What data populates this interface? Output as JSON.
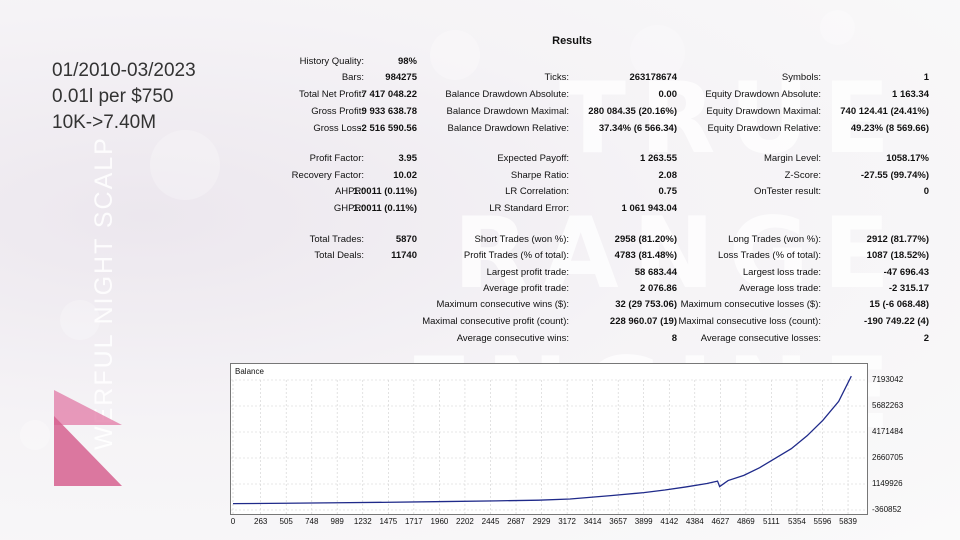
{
  "header_lines": [
    "01/2010-03/2023",
    "0.01l per $750",
    "10K->7.40M"
  ],
  "vertical_text": "WERFUL NIGHT SCALP",
  "watermark_lines": [
    "TRUE",
    "RANGE",
    "ENGINE"
  ],
  "results": {
    "title": "Results",
    "rows": [
      {
        "top": 56,
        "cells": [
          [
            "History Quality:",
            "98%"
          ]
        ]
      },
      {
        "top": 72,
        "cells": [
          [
            "Bars:",
            "984275"
          ],
          [
            "Ticks:",
            "263178674"
          ],
          [
            "Symbols:",
            "1"
          ]
        ]
      },
      {
        "top": 89,
        "cells": [
          [
            "Total Net Profit:",
            "7 417 048.22"
          ],
          [
            "Balance Drawdown Absolute:",
            "0.00"
          ],
          [
            "Equity Drawdown Absolute:",
            "1 163.34"
          ]
        ]
      },
      {
        "top": 106,
        "cells": [
          [
            "Gross Profit:",
            "9 933 638.78"
          ],
          [
            "Balance Drawdown Maximal:",
            "280 084.35 (20.16%)"
          ],
          [
            "Equity Drawdown Maximal:",
            "740 124.41 (24.41%)"
          ]
        ]
      },
      {
        "top": 123,
        "cells": [
          [
            "Gross Loss:",
            "-2 516 590.56"
          ],
          [
            "Balance Drawdown Relative:",
            "37.34% (6 566.34)"
          ],
          [
            "Equity Drawdown Relative:",
            "49.23% (8 569.66)"
          ]
        ]
      },
      {
        "top": 153,
        "cells": [
          [
            "Profit Factor:",
            "3.95"
          ],
          [
            "Expected Payoff:",
            "1 263.55"
          ],
          [
            "Margin Level:",
            "1058.17%"
          ]
        ]
      },
      {
        "top": 170,
        "cells": [
          [
            "Recovery Factor:",
            "10.02"
          ],
          [
            "Sharpe Ratio:",
            "2.08"
          ],
          [
            "Z-Score:",
            "-27.55 (99.74%)"
          ]
        ]
      },
      {
        "top": 186,
        "cells": [
          [
            "AHPR:",
            "1.0011 (0.11%)"
          ],
          [
            "LR Correlation:",
            "0.75"
          ],
          [
            "OnTester result:",
            "0"
          ]
        ]
      },
      {
        "top": 203,
        "cells": [
          [
            "GHPR:",
            "1.0011 (0.11%)"
          ],
          [
            "LR Standard Error:",
            "1 061 943.04"
          ]
        ]
      },
      {
        "top": 234,
        "cells": [
          [
            "Total Trades:",
            "5870"
          ],
          [
            "Short Trades (won %):",
            "2958 (81.20%)"
          ],
          [
            "Long Trades (won %):",
            "2912 (81.77%)"
          ]
        ]
      },
      {
        "top": 250,
        "cells": [
          [
            "Total Deals:",
            "11740"
          ],
          [
            "Profit Trades (% of total):",
            "4783 (81.48%)"
          ],
          [
            "Loss Trades (% of total):",
            "1087 (18.52%)"
          ]
        ]
      },
      {
        "top": 267,
        "cells": [
          null,
          [
            "Largest profit trade:",
            "58 683.44"
          ],
          [
            "Largest loss trade:",
            "-47 696.43"
          ]
        ]
      },
      {
        "top": 283,
        "cells": [
          null,
          [
            "Average profit trade:",
            "2 076.86"
          ],
          [
            "Average loss trade:",
            "-2 315.17"
          ]
        ]
      },
      {
        "top": 299,
        "cells": [
          null,
          [
            "Maximum consecutive wins ($):",
            "32 (29 753.06)"
          ],
          [
            "Maximum consecutive losses ($):",
            "15 (-6 068.48)"
          ]
        ]
      },
      {
        "top": 316,
        "cells": [
          null,
          [
            "Maximal consecutive profit (count):",
            "228 960.07 (19)"
          ],
          [
            "Maximal consecutive loss (count):",
            "-190 749.22 (4)"
          ]
        ]
      },
      {
        "top": 333,
        "cells": [
          null,
          [
            "Average consecutive wins:",
            "8"
          ],
          [
            "Average consecutive losses:",
            "2"
          ]
        ]
      }
    ]
  },
  "chart_data": {
    "type": "line",
    "title": "Balance",
    "x_ticks": [
      0,
      263,
      505,
      748,
      989,
      1232,
      1475,
      1717,
      1960,
      2202,
      2445,
      2687,
      2929,
      3172,
      3414,
      3657,
      3899,
      4142,
      4384,
      4627,
      4869,
      5111,
      5354,
      5596,
      5839
    ],
    "y_ticks": [
      7193042,
      5682263,
      4171484,
      2660705,
      1149926,
      -360852
    ],
    "ylim": [
      -360852,
      7193042
    ],
    "xlim": [
      0,
      6000
    ],
    "series": [
      {
        "color": "#1f2a8a",
        "x": [
          0,
          500,
          1000,
          1500,
          2000,
          2500,
          2900,
          3200,
          3400,
          3600,
          3900,
          4100,
          4300,
          4500,
          4600,
          4620,
          4700,
          4850,
          5000,
          5150,
          5300,
          5450,
          5600,
          5750,
          5870
        ],
        "y": [
          10000,
          30000,
          60000,
          90000,
          130000,
          170000,
          210000,
          280000,
          380000,
          480000,
          650000,
          800000,
          980000,
          1180000,
          1320000,
          1000000,
          1350000,
          1650000,
          2100000,
          2650000,
          3200000,
          3950000,
          4850000,
          5950000,
          7417048
        ]
      }
    ]
  }
}
